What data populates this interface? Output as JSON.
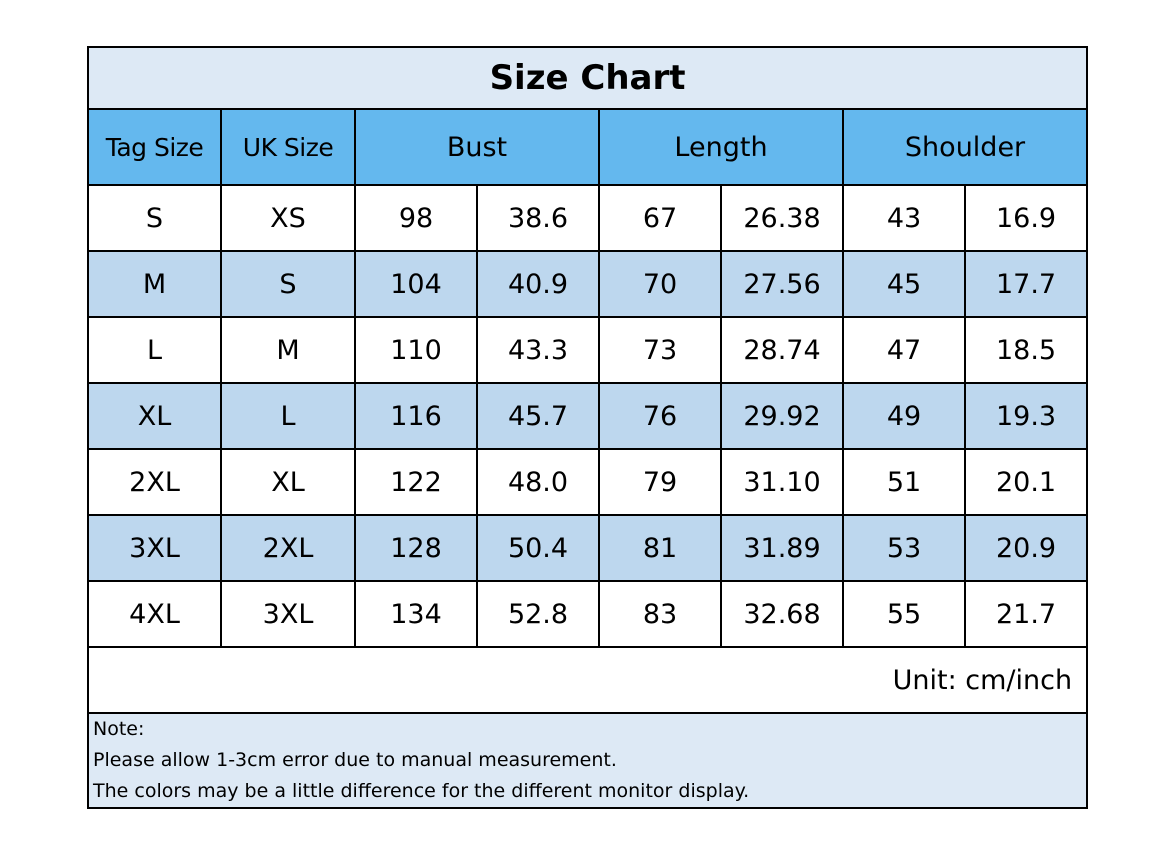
{
  "title": "Size Chart",
  "headers": [
    "Tag Size",
    "UK Size",
    "Bust",
    "Length",
    "Shoulder"
  ],
  "rows": [
    [
      "S",
      "XS",
      "98",
      "38.6",
      "67",
      "26.38",
      "43",
      "16.9"
    ],
    [
      "M",
      "S",
      "104",
      "40.9",
      "70",
      "27.56",
      "45",
      "17.7"
    ],
    [
      "L",
      "M",
      "110",
      "43.3",
      "73",
      "28.74",
      "47",
      "18.5"
    ],
    [
      "XL",
      "L",
      "116",
      "45.7",
      "76",
      "29.92",
      "49",
      "19.3"
    ],
    [
      "2XL",
      "XL",
      "122",
      "48.0",
      "79",
      "31.10",
      "51",
      "20.1"
    ],
    [
      "3XL",
      "2XL",
      "128",
      "50.4",
      "81",
      "31.89",
      "53",
      "20.9"
    ],
    [
      "4XL",
      "3XL",
      "134",
      "52.8",
      "83",
      "32.68",
      "55",
      "21.7"
    ]
  ],
  "unit": "Unit: cm/inch",
  "note": {
    "label": "Note:",
    "lines": [
      "Please allow 1-3cm error due to manual measurement.",
      "The colors may be a little difference for the different monitor display."
    ]
  },
  "colors": {
    "title_bg": "#dde9f5",
    "header_bg": "#64b8ee",
    "alt_row_bg": "#bdd7ee",
    "note_bg": "#dde9f5"
  }
}
